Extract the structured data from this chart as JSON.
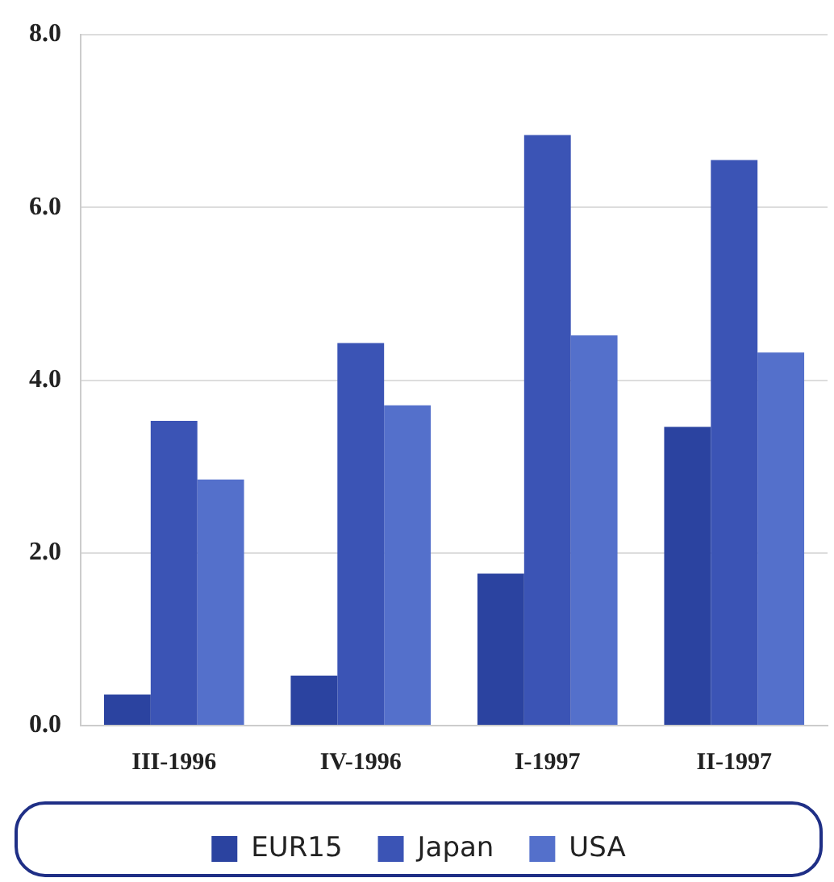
{
  "chart_data": {
    "type": "bar",
    "categories": [
      "III-1996",
      "IV-1996",
      "I-1997",
      "II-1997"
    ],
    "series": [
      {
        "name": "EUR15",
        "color": "#2b43a0",
        "values": [
          0.36,
          0.58,
          1.76,
          3.46
        ]
      },
      {
        "name": "Japan",
        "color": "#3b54b5",
        "values": [
          3.53,
          4.43,
          6.84,
          6.55
        ]
      },
      {
        "name": "USA",
        "color": "#5470cb",
        "values": [
          2.85,
          3.71,
          4.52,
          4.32
        ]
      }
    ],
    "ylim": [
      0,
      8
    ],
    "yticks": [
      {
        "value": 0,
        "label": "0.0"
      },
      {
        "value": 2,
        "label": "2.0"
      },
      {
        "value": 4,
        "label": "4.0"
      },
      {
        "value": 6,
        "label": "6.0"
      },
      {
        "value": 8,
        "label": "8.0"
      }
    ],
    "grid": "y",
    "legend": "bottom"
  }
}
